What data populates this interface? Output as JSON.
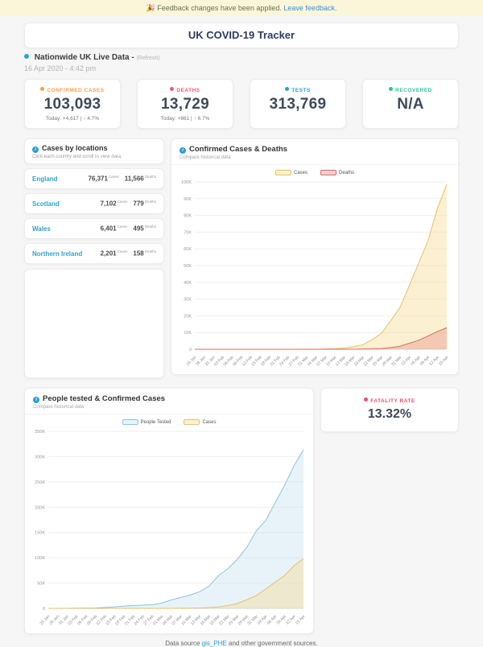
{
  "banner": {
    "icon": "🎉",
    "text": "Feedback changes have been applied.",
    "link": "Leave feedback."
  },
  "header": {
    "title": "UK COVID-19 Tracker"
  },
  "meta": {
    "label": "Nationwide UK Live Data -",
    "refresh": "(Refresh)",
    "timestamp": "16 Apr 2020 - 4:42 pm"
  },
  "stats": [
    {
      "label": "CONFIRMED CASES",
      "value": "103,093",
      "sub": "Today: +4,617 | ↑ 4.7%",
      "color": "#f0a050"
    },
    {
      "label": "DEATHS",
      "value": "13,729",
      "sub": "Today: +861 | ↑ 6.7%",
      "color": "#e85d72"
    },
    {
      "label": "TESTS",
      "value": "313,769",
      "sub": "",
      "color": "#2a9fd4"
    },
    {
      "label": "RECOVERED",
      "value": "N/A",
      "sub": "",
      "color": "#33c3a0"
    }
  ],
  "locations": {
    "title": "Cases by locations",
    "subtitle": "Click each country and scroll to view data.",
    "cases_unit": "Cases",
    "deaths_unit": "Deaths",
    "rows": [
      {
        "name": "England",
        "cases": "76,371",
        "deaths": "11,566"
      },
      {
        "name": "Scotland",
        "cases": "7,102",
        "deaths": "779"
      },
      {
        "name": "Wales",
        "cases": "6,401",
        "deaths": "495"
      },
      {
        "name": "Northern Ireland",
        "cases": "2,201",
        "deaths": "158"
      }
    ]
  },
  "fatality": {
    "label": "FATALITY RATE",
    "value": "13.32%",
    "color": "#e8506e"
  },
  "footer": {
    "prefix": "Data source ",
    "link": "gis_PHE",
    "suffix": " and other government sources."
  },
  "chart_data": [
    {
      "type": "area",
      "title": "Confirmed Cases & Deaths",
      "subtitle": "Compare historical data",
      "xlabel": "",
      "ylabel": "",
      "legend_position": "top",
      "grid": true,
      "ylim": [
        0,
        100000
      ],
      "ytick_step": 10000,
      "x": [
        "25 Jan",
        "28 Jan",
        "31 Jan",
        "03 Feb",
        "06 Feb",
        "09 Feb",
        "12 Feb",
        "15 Feb",
        "18 Feb",
        "21 Feb",
        "24 Feb",
        "27 Feb",
        "01 Mar",
        "04 Mar",
        "07 Mar",
        "10 Mar",
        "13 Mar",
        "16 Mar",
        "19 Mar",
        "22 Mar",
        "25 Mar",
        "28 Mar",
        "31 Mar",
        "03 Apr",
        "06 Apr",
        "09 Apr",
        "12 Apr",
        "15 Apr"
      ],
      "series": [
        {
          "name": "Cases",
          "line": "#e6c06a",
          "fill": "rgba(247,222,153,0.45)",
          "values": [
            0,
            0,
            2,
            2,
            3,
            4,
            9,
            9,
            9,
            9,
            13,
            15,
            35,
            85,
            206,
            373,
            798,
            1543,
            2689,
            5683,
            9529,
            17089,
            25150,
            38168,
            51608,
            65077,
            84279,
            98476
          ]
        },
        {
          "name": "Deaths",
          "line": "#d96d64",
          "fill": "rgba(228,130,120,0.35)",
          "values": [
            0,
            0,
            0,
            0,
            0,
            0,
            0,
            0,
            0,
            0,
            0,
            0,
            0,
            0,
            2,
            6,
            10,
            55,
            144,
            281,
            465,
            1019,
            1789,
            3605,
            5373,
            7978,
            10612,
            12868
          ]
        }
      ]
    },
    {
      "type": "area",
      "title": "People tested & Confirmed Cases",
      "subtitle": "Compare historical data",
      "xlabel": "",
      "ylabel": "",
      "legend_position": "top",
      "grid": true,
      "ylim": [
        0,
        350000
      ],
      "ytick_step": 50000,
      "x": [
        "25 Jan",
        "28 Jan",
        "31 Jan",
        "03 Feb",
        "06 Feb",
        "09 Feb",
        "12 Feb",
        "15 Feb",
        "18 Feb",
        "21 Feb",
        "24 Feb",
        "27 Feb",
        "01 Mar",
        "04 Mar",
        "07 Mar",
        "10 Mar",
        "13 Mar",
        "16 Mar",
        "19 Mar",
        "22 Mar",
        "25 Mar",
        "28 Mar",
        "31 Mar",
        "03 Apr",
        "06 Apr",
        "09 Apr",
        "12 Apr",
        "15 Apr"
      ],
      "series": [
        {
          "name": "People Tested",
          "line": "#8cc5dd",
          "fill": "rgba(195,224,240,0.4)",
          "values": [
            31,
            73,
            177,
            326,
            566,
            795,
            1750,
            2964,
            4501,
            5549,
            6491,
            7132,
            10483,
            16659,
            21460,
            26261,
            32771,
            44105,
            64621,
            78340,
            97019,
            120776,
            152979,
            173784,
            208837,
            243421,
            282074,
            313769
          ]
        },
        {
          "name": "Cases",
          "line": "#e6c06a",
          "fill": "rgba(247,222,153,0.45)",
          "values": [
            0,
            0,
            2,
            2,
            3,
            4,
            9,
            9,
            9,
            9,
            13,
            15,
            35,
            85,
            206,
            373,
            798,
            1543,
            2689,
            5683,
            9529,
            17089,
            25150,
            38168,
            51608,
            65077,
            84279,
            98476
          ]
        }
      ]
    }
  ]
}
